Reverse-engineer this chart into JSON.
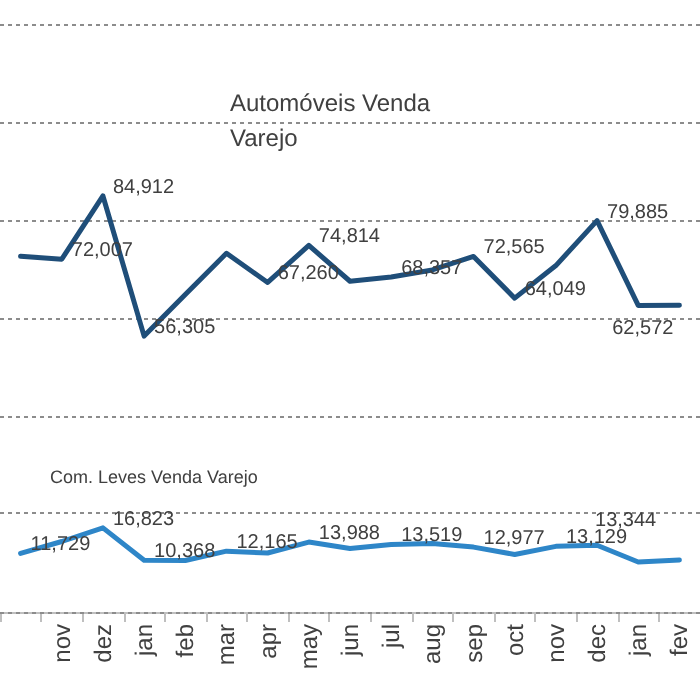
{
  "chart_data": [
    {
      "type": "line",
      "title": "Automóveis Venda Varejo",
      "categories": [
        null,
        "nov",
        "dez",
        "jan",
        "feb",
        "mar",
        "apr",
        "may",
        "jun",
        "jul",
        "aug",
        "sep",
        "oct",
        "nov",
        "dec",
        "jan",
        "fev"
      ],
      "series": [
        {
          "color": "#1f4e79",
          "values": [
            72600,
            72007,
            84912,
            56305,
            64800,
            73200,
            67260,
            74814,
            67500,
            68357,
            69800,
            72565,
            64049,
            70700,
            79885,
            62572,
            62600
          ],
          "value_labels": [
            null,
            "72,007",
            "84,912",
            "56,305",
            null,
            null,
            "67,260",
            "74,814",
            null,
            "68,357",
            null,
            "72,565",
            "64,049",
            null,
            "79,885",
            "62,572",
            null
          ]
        }
      ],
      "ylim": [
        40000,
        120000
      ],
      "yticks": [
        {
          "value": 40000,
          "label": null
        },
        {
          "value": 60000,
          "label": null
        },
        {
          "value": 80000,
          "label": null
        },
        {
          "value": 100000,
          "label": null
        },
        {
          "value": 120000,
          "label": null
        }
      ],
      "grid": "y",
      "tick_labels": false,
      "marker": "none"
    },
    {
      "type": "line",
      "title": "Com. Leves Venda Varejo",
      "categories": [
        null,
        "nov",
        "dez",
        "jan",
        "feb",
        "mar",
        "apr",
        "may",
        "jun",
        "jul",
        "aug",
        "sep",
        "oct",
        "nov",
        "dec",
        "jan",
        "fev"
      ],
      "series": [
        {
          "color": "#2e86c8",
          "values": [
            11729,
            14100,
            16823,
            10368,
            10300,
            12165,
            11800,
            13988,
            12700,
            13519,
            13700,
            12977,
            11500,
            13129,
            13344,
            10000,
            10400
          ],
          "value_labels": [
            "11,729",
            null,
            "16,823",
            "10,368",
            null,
            "12,165",
            null,
            "13,988",
            null,
            "13,519",
            null,
            "12,977",
            null,
            "13,129",
            "13,344",
            null,
            null
          ]
        }
      ],
      "ylim": [
        0,
        20000
      ],
      "yticks": [
        {
          "value": 0,
          "label": null
        },
        {
          "value": 20000,
          "label": null
        }
      ],
      "grid": "y",
      "tick_labels": "x",
      "marker": "none"
    }
  ]
}
